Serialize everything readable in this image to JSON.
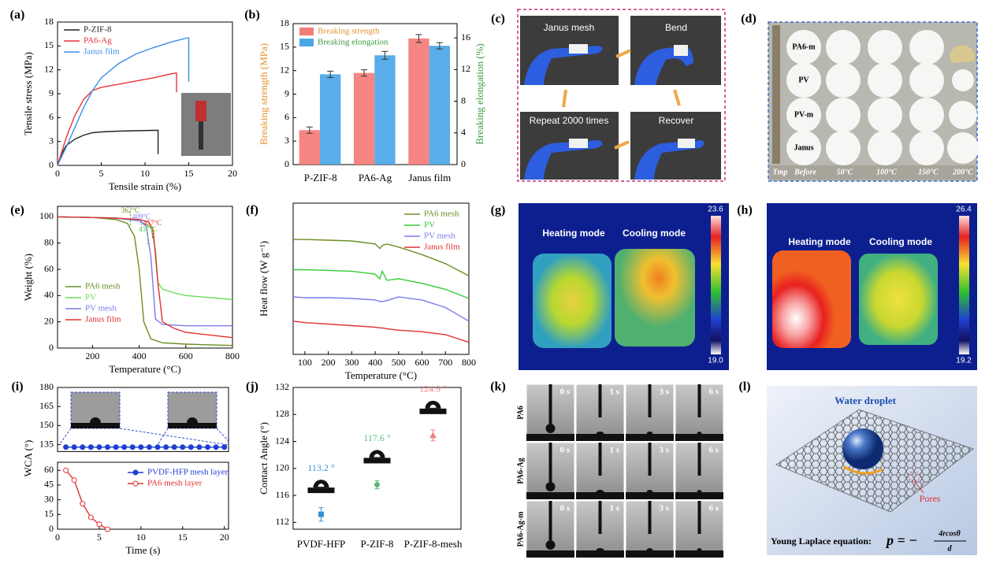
{
  "chart_data": [
    {
      "type": "line",
      "label": "(a)",
      "xlabel": "Tensile strain (%)",
      "ylabel": "Tensile stress (MPa)",
      "xlim": [
        0,
        20
      ],
      "xticks": [
        0,
        5,
        10,
        15,
        20
      ],
      "ylim": [
        0,
        18
      ],
      "yticks": [
        0,
        3,
        6,
        9,
        12,
        15,
        18
      ],
      "legend": "upper left",
      "series": [
        {
          "name": "P-ZIF-8",
          "color": "#222222",
          "x": [
            0,
            0.5,
            1,
            2,
            3,
            4,
            5,
            7,
            9,
            11,
            11.5,
            11.5
          ],
          "values": [
            0,
            1.5,
            2.5,
            3.3,
            3.8,
            4.1,
            4.2,
            4.3,
            4.35,
            4.4,
            4.4,
            1.4
          ]
        },
        {
          "name": "PA6-Ag",
          "color": "#e8333a",
          "x": [
            0,
            1,
            2,
            3,
            4,
            5,
            7,
            9,
            11,
            13,
            13.6,
            13.6
          ],
          "values": [
            0,
            3.5,
            6.3,
            8.3,
            9.4,
            9.8,
            10.2,
            10.6,
            11,
            11.5,
            11.6,
            9.2
          ]
        },
        {
          "name": "Janus film",
          "color": "#3a8ee8",
          "x": [
            0,
            1,
            2,
            3,
            4,
            5,
            7,
            9,
            11,
            13,
            14.8,
            15,
            15
          ],
          "values": [
            0,
            2.3,
            4.8,
            7.3,
            9.4,
            11,
            12.8,
            14,
            14.8,
            15.5,
            16,
            16,
            10.5
          ]
        }
      ]
    },
    {
      "type": "bar",
      "label": "(b)",
      "ylabel": "Breaking strength (MPa)",
      "y2label": "Breaking elongation (%)",
      "ylabel_color": "#e8902a",
      "y2label_color": "#3a9a40",
      "categories": [
        "P-ZIF-8",
        "PA6-Ag",
        "Janus film"
      ],
      "ylim": [
        0,
        18
      ],
      "yticks": [
        0,
        3,
        6,
        9,
        12,
        15,
        18
      ],
      "y2lim": [
        0,
        17.8
      ],
      "y2ticks": [
        0,
        4,
        8,
        12,
        16
      ],
      "legend": "upper left",
      "series": [
        {
          "name": "Breaking strength",
          "color": "#f47c76",
          "text_color": "#e8902a",
          "values": [
            4.4,
            11.7,
            16.1
          ],
          "errors": [
            0.4,
            0.4,
            0.5
          ]
        },
        {
          "name": "Breaking elongation",
          "color": "#4ba6e6",
          "text_color": "#3a9a40",
          "axis": "y2",
          "values": [
            11.4,
            13.8,
            15.0
          ],
          "errors": [
            0.4,
            0.5,
            0.4
          ]
        }
      ]
    },
    {
      "type": "line",
      "label": "(e)",
      "xlabel": "Temperature (°C)",
      "ylabel": "Weight (%)",
      "xlim": [
        50,
        800
      ],
      "xticks": [
        200,
        400,
        600,
        800
      ],
      "ylim": [
        0,
        108
      ],
      "yticks": [
        0,
        20,
        40,
        60,
        80,
        100
      ],
      "legend": "lower left",
      "annotations": [
        {
          "value": 362,
          "label": "362°C",
          "color": "#6b8e23"
        },
        {
          "value": 409,
          "label": "409°C",
          "color": "#7b7bea"
        },
        {
          "value": 457,
          "label": "457°C",
          "color": "#e03030"
        },
        {
          "value": 437,
          "label": "437°C",
          "color": "#55cc44"
        }
      ],
      "series": [
        {
          "name": "PA6 mesh",
          "color": "#6b8e23",
          "x": [
            50,
            200,
            300,
            350,
            380,
            400,
            420,
            450,
            500,
            600,
            800
          ],
          "values": [
            100,
            99.5,
            98,
            95,
            85,
            60,
            20,
            7,
            4,
            3,
            2
          ]
        },
        {
          "name": "PV",
          "color": "#66dd55",
          "x": [
            50,
            200,
            300,
            400,
            450,
            470,
            480,
            500,
            550,
            600,
            800
          ],
          "values": [
            100,
            99.5,
            99,
            97,
            92,
            75,
            50,
            45,
            42,
            40,
            37
          ]
        },
        {
          "name": "PV mesh",
          "color": "#7b7bea",
          "x": [
            50,
            200,
            300,
            400,
            430,
            450,
            470,
            500,
            600,
            800
          ],
          "values": [
            100,
            99.5,
            99,
            97,
            93,
            70,
            22,
            18,
            17,
            17
          ]
        },
        {
          "name": "Janus film",
          "color": "#e03030",
          "x": [
            50,
            200,
            300,
            400,
            440,
            460,
            480,
            500,
            550,
            600,
            800
          ],
          "values": [
            100,
            99.5,
            99,
            98,
            96,
            90,
            50,
            20,
            15,
            12,
            8
          ]
        }
      ]
    },
    {
      "type": "line",
      "label": "(f)",
      "xlabel": "Temperature (°C)",
      "ylabel": "Heat flow (W g⁻¹)",
      "xlim": [
        50,
        800
      ],
      "xticks": [
        100,
        200,
        300,
        400,
        500,
        600,
        700,
        800
      ],
      "ylim": [
        0,
        10
      ],
      "legend": "upper right",
      "series": [
        {
          "name": "PA6 mesh",
          "color": "#6b8e23",
          "x": [
            50,
            100,
            200,
            300,
            400,
            420,
            430,
            450,
            500,
            600,
            700,
            800
          ],
          "values": [
            7.6,
            7.6,
            7.55,
            7.5,
            7.3,
            7.0,
            7.2,
            7.3,
            7.1,
            6.6,
            6.0,
            5.2
          ]
        },
        {
          "name": "PV",
          "color": "#33cc33",
          "x": [
            50,
            100,
            200,
            300,
            400,
            420,
            430,
            450,
            500,
            600,
            700,
            800
          ],
          "values": [
            5.6,
            5.6,
            5.55,
            5.5,
            5.3,
            5.0,
            5.5,
            4.9,
            5.0,
            4.7,
            4.3,
            3.7
          ]
        },
        {
          "name": "PV mesh",
          "color": "#7b7bea",
          "x": [
            50,
            100,
            200,
            300,
            400,
            420,
            430,
            450,
            500,
            600,
            700,
            800
          ],
          "values": [
            3.8,
            3.75,
            3.75,
            3.7,
            3.6,
            3.5,
            3.5,
            3.55,
            3.8,
            3.6,
            3.1,
            2.2
          ]
        },
        {
          "name": "Janus film",
          "color": "#e03030",
          "x": [
            50,
            100,
            200,
            300,
            400,
            420,
            430,
            450,
            500,
            600,
            700,
            800
          ],
          "values": [
            2.2,
            2.1,
            2.0,
            1.9,
            1.8,
            1.75,
            1.75,
            1.7,
            1.6,
            1.5,
            1.3,
            0.8
          ]
        }
      ]
    },
    {
      "type": "line",
      "label": "(i)",
      "xlabel": "Time (s)",
      "ylabel": "WCA (°)",
      "xlim": [
        0,
        20.5
      ],
      "xticks": [
        0,
        5,
        10,
        15,
        20
      ],
      "ylim": [
        0,
        180
      ],
      "ybreak": [
        65,
        132
      ],
      "yticks": [
        0,
        15,
        30,
        45,
        60,
        135,
        150,
        165,
        180
      ],
      "legend": "lower right",
      "series": [
        {
          "name": "PVDF-HFP mesh layer",
          "color": "#1f3fd0",
          "marker": "filled",
          "x": [
            1,
            2,
            3,
            4,
            5,
            6,
            7,
            8,
            9,
            10,
            11,
            12,
            13,
            14,
            15,
            16,
            17,
            18,
            19,
            20
          ],
          "values": [
            133,
            133,
            133,
            133,
            133,
            133,
            133,
            133,
            133,
            133,
            133,
            133,
            133,
            133,
            133,
            133,
            133,
            133,
            133,
            133
          ]
        },
        {
          "name": "PA6 mesh layer",
          "color": "#e03030",
          "marker": "open",
          "x": [
            1,
            2,
            3,
            4,
            5,
            6
          ],
          "values": [
            60,
            50,
            26,
            12,
            5,
            0
          ]
        }
      ]
    },
    {
      "type": "errorbar",
      "label": "(j)",
      "ylabel": "Contact Angle (°)",
      "categories": [
        "PVDF-HFP",
        "P-ZIF-8",
        "P-ZIF-8-mesh"
      ],
      "values": [
        113.2,
        117.6,
        124.9
      ],
      "value_labels": [
        "113.2 °",
        "117.6 °",
        "124.9 °"
      ],
      "errors": [
        1.0,
        0.6,
        0.8
      ],
      "colors": [
        "#3a8fd0",
        "#5cb87a",
        "#f08080"
      ],
      "markers": [
        "square",
        "circle",
        "triangle"
      ],
      "ylim": [
        111,
        132
      ],
      "yticks": [
        112,
        116,
        120,
        124,
        128,
        132
      ]
    }
  ],
  "photo_panels": {
    "c": {
      "label": "(c)",
      "texts": [
        "Janus mesh",
        "Bend",
        "Repeat 2000 times",
        "Recover"
      ]
    },
    "d": {
      "label": "(d)",
      "rows": [
        "PA6-m",
        "PV",
        "PV-m",
        "Janus"
      ],
      "columns": [
        "Tmp",
        "Before",
        "50°C",
        "100°C",
        "150°C",
        "200°C"
      ]
    },
    "g": {
      "label": "(g)",
      "modes": [
        "Heating mode",
        "Cooling mode"
      ],
      "scale_max": "23.6",
      "scale_min": "19.0"
    },
    "h": {
      "label": "(h)",
      "modes": [
        "Heating mode",
        "Cooling mode"
      ],
      "scale_max": "26.4",
      "scale_min": "19.2"
    },
    "k": {
      "label": "(k)",
      "rows": [
        "PA6",
        "PA6-Ag",
        "PA6-Ag-m"
      ],
      "times": [
        "0 s",
        "1 s",
        "3 s",
        "6 s"
      ]
    },
    "l": {
      "label": "(l)",
      "droplet": "Water droplet",
      "pores": "Pores",
      "equation": "Young Laplace  equation:",
      "formula": {
        "lhs": "p = −",
        "numerator": "4rcosθ",
        "denominator": "d"
      }
    }
  }
}
